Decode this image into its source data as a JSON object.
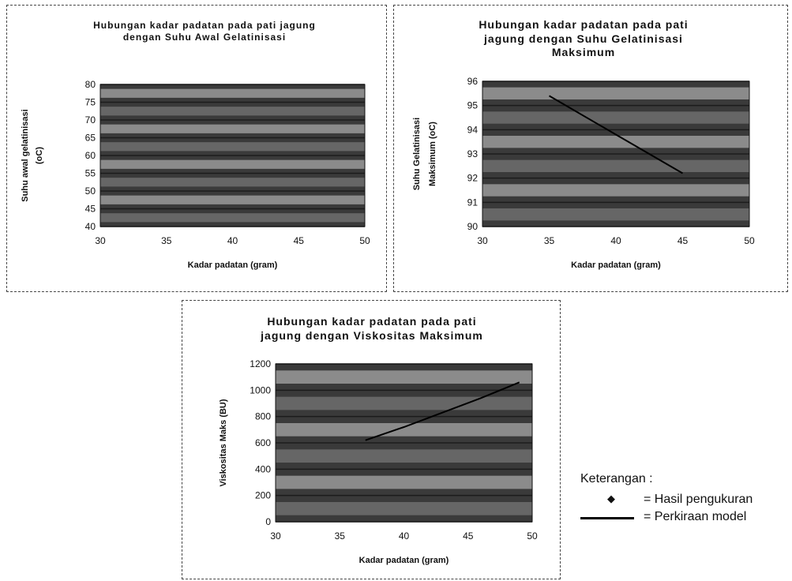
{
  "chart_data": [
    {
      "type": "line",
      "title": "Hubungan kadar padatan pada pati jagung dengan Suhu Awal Gelatinisasi",
      "title_lines": [
        "Hubungan kadar padatan pada pati jagung",
        "dengan Suhu Awal Gelatinisasi"
      ],
      "xlabel": "Kadar padatan (gram)",
      "ylabel": "Suhu awal gelatinisasi (oC)",
      "ylabel_lines": [
        "Suhu awal gelatinisasi",
        "(oC)"
      ],
      "xlim": [
        30,
        50
      ],
      "ylim": [
        40,
        80
      ],
      "xticks": [
        30,
        35,
        40,
        45,
        50
      ],
      "yticks": [
        40,
        45,
        50,
        55,
        60,
        65,
        70,
        75,
        80
      ],
      "grid": true,
      "series": []
    },
    {
      "type": "line",
      "title": "Hubungan kadar padatan pada pati jagung dengan Suhu Gelatinisasi Maksimum",
      "title_lines": [
        "Hubungan kadar padatan pada pati",
        "jagung dengan Suhu Gelatinisasi",
        "Maksimum"
      ],
      "xlabel": "Kadar padatan (gram)",
      "ylabel": "Suhu Gelatinisasi Maksimum (oC)",
      "ylabel_lines": [
        "Suhu Gelatinisasi",
        "Maksimum (oC)"
      ],
      "xlim": [
        30,
        50
      ],
      "ylim": [
        90,
        96
      ],
      "xticks": [
        30,
        35,
        40,
        45,
        50
      ],
      "yticks": [
        90,
        91,
        92,
        93,
        94,
        95,
        96
      ],
      "grid": true,
      "series": [
        {
          "values_x": [
            35,
            40,
            45
          ],
          "values_y": [
            95.4,
            93.8,
            92.2
          ]
        }
      ]
    },
    {
      "type": "line",
      "title": "Hubungan kadar padatan pada pati jagung dengan Viskositas Maksimum",
      "title_lines": [
        "Hubungan kadar padatan pada pati",
        "jagung  dengan Viskositas Maksimum"
      ],
      "xlabel": "Kadar padatan (gram)",
      "ylabel": "Viskositas Maks (BU)",
      "ylabel_lines": [
        "Viskositas Maks (BU)"
      ],
      "xlim": [
        30,
        50
      ],
      "ylim": [
        0,
        1200
      ],
      "xticks": [
        30,
        35,
        40,
        45,
        50
      ],
      "yticks": [
        0,
        200,
        400,
        600,
        800,
        1000,
        1200
      ],
      "grid": true,
      "series": [
        {
          "values_x": [
            37,
            40,
            43,
            46,
            49
          ],
          "values_y": [
            620,
            720,
            830,
            940,
            1060
          ]
        }
      ]
    }
  ],
  "legend": {
    "heading": "Keterangan :",
    "items": [
      {
        "marker": "diamond-icon",
        "label": "= Hasil pengukuran"
      },
      {
        "marker": "line",
        "label": "= Perkiraan model"
      }
    ]
  },
  "colors": {
    "plot_bg_dark": "#3a3a3a",
    "plot_bg_mid": "#6e6e6e",
    "plot_bg_light": "#9a9a9a",
    "model_line": "#000000"
  }
}
